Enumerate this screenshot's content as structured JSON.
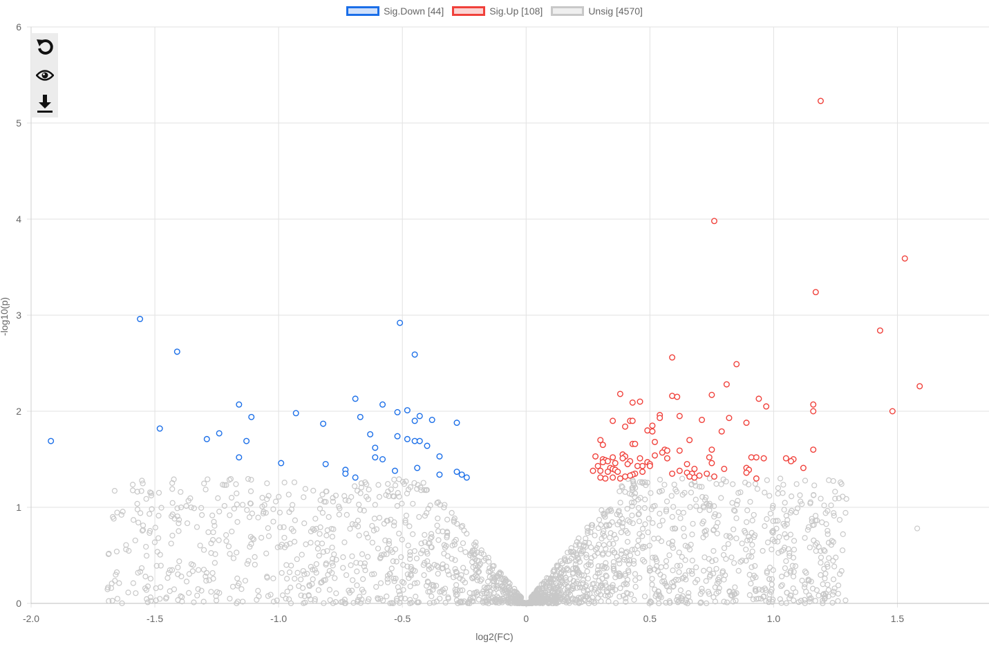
{
  "legend": [
    {
      "label": "Sig.Down [44]",
      "stroke": "#1a6ee8",
      "fill": "#cfe0fb"
    },
    {
      "label": "Sig.Up [108]",
      "stroke": "#f0403a",
      "fill": "#fbd4d3"
    },
    {
      "label": "Unsig [4570]",
      "stroke": "#c8c8c8",
      "fill": "#efefef"
    }
  ],
  "toolbar": {
    "icons": [
      "reset-icon",
      "eye-icon",
      "download-icon"
    ]
  },
  "chart_data": {
    "type": "scatter",
    "xlabel": "log2(FC)",
    "ylabel": "-log10(p)",
    "xlim": [
      -2.0,
      1.87
    ],
    "ylim": [
      0,
      6
    ],
    "xticks": [
      -2.0,
      -1.5,
      -1.0,
      -0.5,
      0,
      0.5,
      1.0,
      1.5
    ],
    "yticks": [
      0,
      1,
      2,
      3,
      4,
      5,
      6
    ],
    "grid": true,
    "legend_position": "top",
    "series": [
      {
        "name": "Sig.Down [44]",
        "color": "#1a6ee8",
        "points": [
          [
            -1.92,
            1.69
          ],
          [
            -1.56,
            2.96
          ],
          [
            -1.48,
            1.82
          ],
          [
            -1.41,
            2.62
          ],
          [
            -1.29,
            1.71
          ],
          [
            -1.24,
            1.77
          ],
          [
            -1.16,
            2.07
          ],
          [
            -1.16,
            1.52
          ],
          [
            -1.13,
            1.69
          ],
          [
            -1.11,
            1.94
          ],
          [
            -0.99,
            1.46
          ],
          [
            -0.93,
            1.98
          ],
          [
            -0.82,
            1.87
          ],
          [
            -0.81,
            1.45
          ],
          [
            -0.73,
            1.39
          ],
          [
            -0.73,
            1.35
          ],
          [
            -0.69,
            2.13
          ],
          [
            -0.69,
            1.31
          ],
          [
            -0.67,
            1.94
          ],
          [
            -0.63,
            1.76
          ],
          [
            -0.61,
            1.62
          ],
          [
            -0.61,
            1.52
          ],
          [
            -0.58,
            2.07
          ],
          [
            -0.58,
            1.5
          ],
          [
            -0.53,
            1.38
          ],
          [
            -0.52,
            1.99
          ],
          [
            -0.52,
            1.74
          ],
          [
            -0.51,
            2.92
          ],
          [
            -0.48,
            2.01
          ],
          [
            -0.48,
            1.71
          ],
          [
            -0.45,
            2.59
          ],
          [
            -0.45,
            1.9
          ],
          [
            -0.45,
            1.69
          ],
          [
            -0.44,
            1.41
          ],
          [
            -0.43,
            1.95
          ],
          [
            -0.43,
            1.69
          ],
          [
            -0.4,
            1.64
          ],
          [
            -0.38,
            1.91
          ],
          [
            -0.35,
            1.53
          ],
          [
            -0.35,
            1.34
          ],
          [
            -0.28,
            1.88
          ],
          [
            -0.28,
            1.37
          ],
          [
            -0.26,
            1.34
          ],
          [
            -0.24,
            1.31
          ]
        ]
      },
      {
        "name": "Sig.Up [108]",
        "color": "#f0403a",
        "points": [
          [
            1.19,
            5.23
          ],
          [
            0.76,
            3.98
          ],
          [
            1.53,
            3.59
          ],
          [
            1.17,
            3.24
          ],
          [
            1.43,
            2.84
          ],
          [
            0.59,
            2.56
          ],
          [
            0.85,
            2.49
          ],
          [
            1.59,
            2.26
          ],
          [
            0.81,
            2.28
          ],
          [
            0.38,
            2.18
          ],
          [
            0.75,
            2.17
          ],
          [
            0.59,
            2.16
          ],
          [
            0.61,
            2.15
          ],
          [
            0.94,
            2.13
          ],
          [
            0.43,
            2.09
          ],
          [
            0.46,
            2.1
          ],
          [
            1.16,
            2.07
          ],
          [
            0.97,
            2.05
          ],
          [
            1.16,
            2.0
          ],
          [
            1.48,
            2.0
          ],
          [
            0.54,
            1.96
          ],
          [
            0.62,
            1.95
          ],
          [
            0.54,
            1.93
          ],
          [
            0.82,
            1.93
          ],
          [
            0.71,
            1.91
          ],
          [
            0.35,
            1.9
          ],
          [
            0.42,
            1.9
          ],
          [
            0.43,
            1.9
          ],
          [
            0.89,
            1.88
          ],
          [
            0.51,
            1.85
          ],
          [
            0.4,
            1.84
          ],
          [
            0.49,
            1.8
          ],
          [
            0.51,
            1.79
          ],
          [
            0.79,
            1.79
          ],
          [
            0.3,
            1.7
          ],
          [
            0.66,
            1.7
          ],
          [
            0.43,
            1.66
          ],
          [
            0.44,
            1.66
          ],
          [
            0.31,
            1.65
          ],
          [
            0.52,
            1.68
          ],
          [
            1.16,
            1.6
          ],
          [
            0.56,
            1.6
          ],
          [
            0.57,
            1.59
          ],
          [
            0.75,
            1.6
          ],
          [
            0.62,
            1.59
          ],
          [
            0.55,
            1.57
          ],
          [
            0.39,
            1.55
          ],
          [
            0.4,
            1.53
          ],
          [
            0.52,
            1.54
          ],
          [
            0.28,
            1.53
          ],
          [
            0.35,
            1.52
          ],
          [
            0.39,
            1.51
          ],
          [
            0.57,
            1.51
          ],
          [
            0.46,
            1.51
          ],
          [
            0.74,
            1.52
          ],
          [
            0.91,
            1.52
          ],
          [
            0.93,
            1.52
          ],
          [
            0.96,
            1.51
          ],
          [
            1.05,
            1.51
          ],
          [
            1.08,
            1.5
          ],
          [
            1.07,
            1.48
          ],
          [
            0.31,
            1.5
          ],
          [
            0.32,
            1.49
          ],
          [
            0.33,
            1.48
          ],
          [
            0.31,
            1.47
          ],
          [
            0.42,
            1.48
          ],
          [
            0.49,
            1.47
          ],
          [
            0.5,
            1.45
          ],
          [
            0.36,
            1.46
          ],
          [
            0.41,
            1.45
          ],
          [
            0.65,
            1.45
          ],
          [
            0.75,
            1.46
          ],
          [
            0.47,
            1.43
          ],
          [
            0.45,
            1.43
          ],
          [
            0.5,
            1.43
          ],
          [
            0.29,
            1.43
          ],
          [
            0.34,
            1.41
          ],
          [
            0.35,
            1.4
          ],
          [
            0.36,
            1.39
          ],
          [
            0.37,
            1.37
          ],
          [
            0.33,
            1.37
          ],
          [
            0.3,
            1.38
          ],
          [
            0.27,
            1.38
          ],
          [
            1.12,
            1.41
          ],
          [
            0.89,
            1.41
          ],
          [
            0.9,
            1.39
          ],
          [
            0.8,
            1.4
          ],
          [
            0.68,
            1.4
          ],
          [
            0.62,
            1.38
          ],
          [
            0.59,
            1.35
          ],
          [
            0.65,
            1.36
          ],
          [
            0.67,
            1.35
          ],
          [
            0.7,
            1.33
          ],
          [
            0.66,
            1.32
          ],
          [
            0.68,
            1.31
          ],
          [
            0.73,
            1.35
          ],
          [
            0.76,
            1.32
          ],
          [
            0.89,
            1.36
          ],
          [
            0.93,
            1.3
          ],
          [
            0.47,
            1.37
          ],
          [
            0.44,
            1.35
          ],
          [
            0.43,
            1.34
          ],
          [
            0.42,
            1.33
          ],
          [
            0.4,
            1.32
          ],
          [
            0.38,
            1.3
          ],
          [
            0.35,
            1.31
          ],
          [
            0.32,
            1.3
          ],
          [
            0.3,
            1.31
          ]
        ]
      },
      {
        "name": "Unsig [4570]",
        "color": "#c8c8c8",
        "points": []
      }
    ]
  }
}
